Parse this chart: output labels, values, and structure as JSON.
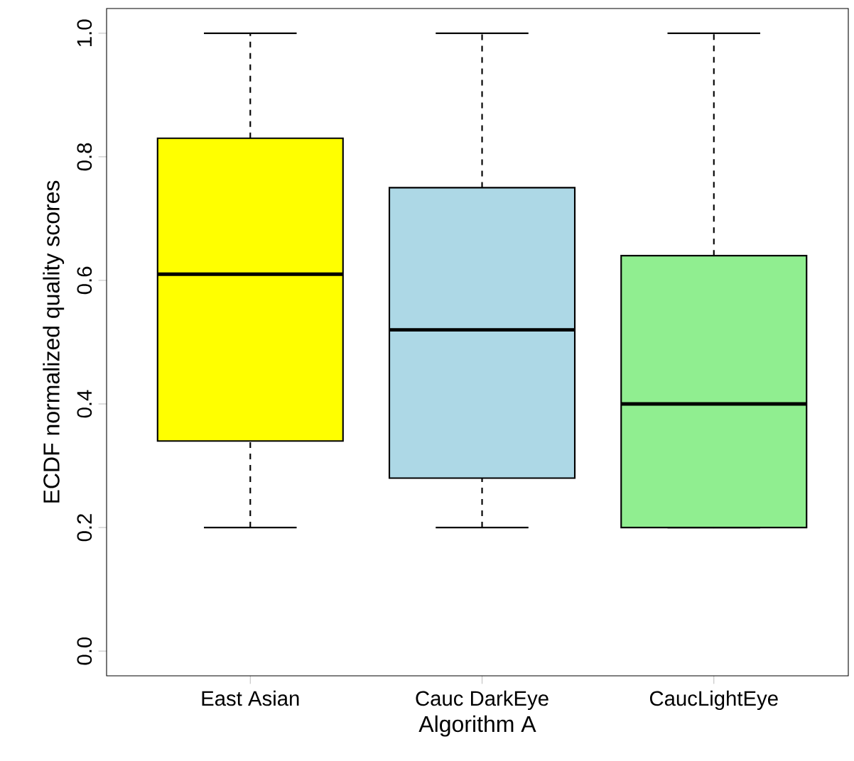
{
  "chart_data": {
    "type": "box",
    "xlabel": "Algorithm A",
    "ylabel": "ECDF normalized quality scores",
    "categories": [
      "East Asian",
      "Cauc DarkEye",
      "CaucLightEye"
    ],
    "colors": [
      "#ffff00",
      "#add8e6",
      "#90ee90"
    ],
    "boxes": [
      {
        "low": 0.2,
        "q1": 0.34,
        "median": 0.61,
        "q3": 0.83,
        "high": 1.0
      },
      {
        "low": 0.2,
        "q1": 0.28,
        "median": 0.52,
        "q3": 0.75,
        "high": 1.0
      },
      {
        "low": 0.2,
        "q1": 0.2,
        "median": 0.4,
        "q3": 0.64,
        "high": 1.0
      }
    ],
    "ylim": [
      -0.04,
      1.04
    ],
    "yticks": [
      {
        "value": 0,
        "label": "0.0"
      },
      0.2,
      0.4,
      0.6,
      0.8,
      {
        "value": 1,
        "label": "1.0"
      }
    ],
    "grid": false
  }
}
